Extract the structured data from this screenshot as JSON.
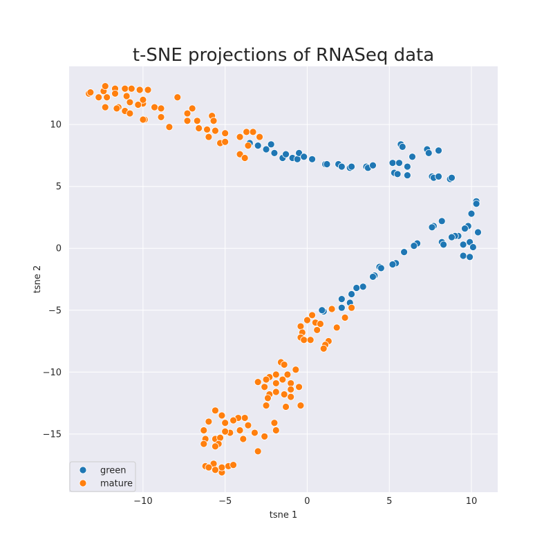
{
  "chart_data": {
    "type": "scatter",
    "title": "t-SNE projections of RNASeq data",
    "xlabel": "tsne 1",
    "ylabel": "tsne 2",
    "xlim": [
      -14.5,
      11.6
    ],
    "ylim": [
      -19.7,
      14.7
    ],
    "xticks": [
      -10,
      -5,
      0,
      5,
      10
    ],
    "yticks": [
      -15,
      -10,
      -5,
      0,
      5,
      10
    ],
    "xtick_labels": [
      "−10",
      "−5",
      "0",
      "5",
      "10"
    ],
    "ytick_labels": [
      "−15",
      "−10",
      "−5",
      "0",
      "5",
      "10"
    ],
    "grid": true,
    "legend_position": "lower-left",
    "background_color": "#eaeaf2",
    "series": [
      {
        "name": "green",
        "color": "#1f77b4",
        "points": [
          [
            -3.5,
            8.5
          ],
          [
            -3.0,
            8.3
          ],
          [
            -2.5,
            8.0
          ],
          [
            -2.2,
            8.4
          ],
          [
            -2.0,
            7.7
          ],
          [
            -1.5,
            7.3
          ],
          [
            -1.3,
            7.6
          ],
          [
            -0.9,
            7.3
          ],
          [
            -0.6,
            7.2
          ],
          [
            -0.5,
            7.7
          ],
          [
            -0.2,
            7.4
          ],
          [
            0.3,
            7.2
          ],
          [
            1.1,
            6.8
          ],
          [
            1.2,
            6.8
          ],
          [
            1.9,
            6.8
          ],
          [
            2.1,
            6.6
          ],
          [
            2.6,
            6.5
          ],
          [
            2.7,
            6.6
          ],
          [
            3.6,
            6.6
          ],
          [
            3.7,
            6.5
          ],
          [
            4.0,
            6.7
          ],
          [
            5.2,
            6.9
          ],
          [
            5.3,
            6.1
          ],
          [
            5.5,
            6.0
          ],
          [
            5.6,
            6.9
          ],
          [
            5.7,
            8.4
          ],
          [
            5.8,
            8.2
          ],
          [
            6.1,
            5.9
          ],
          [
            6.1,
            6.6
          ],
          [
            6.4,
            7.4
          ],
          [
            7.3,
            8.0
          ],
          [
            7.4,
            7.7
          ],
          [
            7.6,
            5.8
          ],
          [
            7.7,
            5.7
          ],
          [
            8.0,
            7.9
          ],
          [
            8.0,
            5.8
          ],
          [
            8.7,
            5.6
          ],
          [
            8.8,
            5.7
          ],
          [
            10.3,
            3.8
          ],
          [
            10.3,
            3.6
          ],
          [
            10.0,
            2.8
          ],
          [
            10.4,
            1.3
          ],
          [
            8.2,
            2.2
          ],
          [
            7.7,
            1.8
          ],
          [
            7.6,
            1.7
          ],
          [
            9.8,
            1.8
          ],
          [
            9.6,
            1.6
          ],
          [
            9.2,
            1.0
          ],
          [
            9.0,
            1.0
          ],
          [
            8.2,
            0.5
          ],
          [
            8.3,
            0.3
          ],
          [
            8.8,
            0.9
          ],
          [
            9.9,
            0.5
          ],
          [
            10.1,
            0.1
          ],
          [
            9.5,
            0.3
          ],
          [
            9.5,
            -0.6
          ],
          [
            9.9,
            -0.7
          ],
          [
            6.7,
            0.4
          ],
          [
            6.5,
            0.2
          ],
          [
            5.9,
            -0.3
          ],
          [
            5.4,
            -1.2
          ],
          [
            5.2,
            -1.3
          ],
          [
            4.4,
            -1.5
          ],
          [
            4.5,
            -1.6
          ],
          [
            4.1,
            -2.2
          ],
          [
            4.0,
            -2.3
          ],
          [
            3.4,
            -3.1
          ],
          [
            3.0,
            -3.2
          ],
          [
            2.7,
            -3.7
          ],
          [
            2.6,
            -4.4
          ],
          [
            2.1,
            -4.1
          ],
          [
            2.1,
            -4.8
          ],
          [
            1.0,
            -5.1
          ],
          [
            0.9,
            -5.0
          ]
        ]
      },
      {
        "name": "mature",
        "color": "#ff7f0e",
        "points": [
          [
            -13.3,
            12.5
          ],
          [
            -13.2,
            12.6
          ],
          [
            -12.7,
            12.2
          ],
          [
            -12.4,
            12.7
          ],
          [
            -12.3,
            13.1
          ],
          [
            -12.2,
            12.2
          ],
          [
            -12.3,
            11.4
          ],
          [
            -11.7,
            12.9
          ],
          [
            -11.7,
            12.5
          ],
          [
            -11.5,
            11.4
          ],
          [
            -11.6,
            11.3
          ],
          [
            -11.1,
            12.9
          ],
          [
            -11.0,
            12.3
          ],
          [
            -11.1,
            11.1
          ],
          [
            -10.8,
            10.9
          ],
          [
            -10.8,
            11.8
          ],
          [
            -10.7,
            12.9
          ],
          [
            -10.2,
            12.8
          ],
          [
            -10.0,
            11.7
          ],
          [
            -10.0,
            12.0
          ],
          [
            -10.3,
            11.6
          ],
          [
            -9.9,
            10.4
          ],
          [
            -10.0,
            10.4
          ],
          [
            -9.7,
            12.8
          ],
          [
            -9.3,
            11.4
          ],
          [
            -8.9,
            11.3
          ],
          [
            -8.9,
            10.6
          ],
          [
            -8.4,
            9.8
          ],
          [
            -7.9,
            12.2
          ],
          [
            -7.3,
            10.9
          ],
          [
            -7.0,
            11.3
          ],
          [
            -7.3,
            10.3
          ],
          [
            -6.7,
            10.3
          ],
          [
            -6.6,
            9.7
          ],
          [
            -6.1,
            9.6
          ],
          [
            -6.0,
            9.0
          ],
          [
            -5.8,
            10.7
          ],
          [
            -5.7,
            10.3
          ],
          [
            -5.6,
            9.5
          ],
          [
            -5.3,
            8.5
          ],
          [
            -5.0,
            9.3
          ],
          [
            -5.0,
            8.6
          ],
          [
            -4.1,
            9.0
          ],
          [
            -4.1,
            7.6
          ],
          [
            -3.8,
            7.3
          ],
          [
            -3.7,
            9.4
          ],
          [
            -3.6,
            8.3
          ],
          [
            -3.3,
            9.4
          ],
          [
            -2.9,
            9.0
          ],
          [
            1.5,
            -4.9
          ],
          [
            2.7,
            -4.8
          ],
          [
            2.3,
            -5.6
          ],
          [
            0.3,
            -5.4
          ],
          [
            0.0,
            -5.8
          ],
          [
            0.5,
            -6.0
          ],
          [
            0.8,
            -6.1
          ],
          [
            -0.4,
            -6.3
          ],
          [
            -0.3,
            -6.8
          ],
          [
            1.8,
            -6.4
          ],
          [
            0.6,
            -6.6
          ],
          [
            -0.4,
            -7.2
          ],
          [
            -0.2,
            -7.4
          ],
          [
            0.2,
            -7.4
          ],
          [
            1.3,
            -7.5
          ],
          [
            1.1,
            -7.8
          ],
          [
            1.0,
            -8.1
          ],
          [
            -1.6,
            -9.2
          ],
          [
            -1.4,
            -9.4
          ],
          [
            -1.2,
            -10.2
          ],
          [
            -0.7,
            -9.8
          ],
          [
            -1.9,
            -10.2
          ],
          [
            -2.3,
            -10.4
          ],
          [
            -2.5,
            -10.6
          ],
          [
            -3.0,
            -10.8
          ],
          [
            -1.5,
            -10.6
          ],
          [
            -2.6,
            -11.2
          ],
          [
            -1.9,
            -10.9
          ],
          [
            -1.0,
            -10.9
          ],
          [
            -0.5,
            -11.2
          ],
          [
            -1.0,
            -11.4
          ],
          [
            -2.3,
            -11.8
          ],
          [
            -2.4,
            -12.1
          ],
          [
            -1.9,
            -11.6
          ],
          [
            -1.4,
            -11.8
          ],
          [
            -1.0,
            -12.0
          ],
          [
            -2.5,
            -12.7
          ],
          [
            -1.3,
            -12.8
          ],
          [
            -0.4,
            -12.7
          ],
          [
            -3.8,
            -13.7
          ],
          [
            -4.2,
            -13.7
          ],
          [
            -5.2,
            -13.5
          ],
          [
            -5.6,
            -13.1
          ],
          [
            -3.6,
            -14.3
          ],
          [
            -4.5,
            -13.9
          ],
          [
            -5.0,
            -14.1
          ],
          [
            -6.0,
            -14.0
          ],
          [
            -2.0,
            -14.1
          ],
          [
            -1.9,
            -14.7
          ],
          [
            -3.2,
            -14.9
          ],
          [
            -4.1,
            -14.7
          ],
          [
            -4.7,
            -14.9
          ],
          [
            -5.0,
            -14.8
          ],
          [
            -3.9,
            -15.4
          ],
          [
            -2.6,
            -15.2
          ],
          [
            -5.6,
            -15.4
          ],
          [
            -5.3,
            -15.3
          ],
          [
            -5.4,
            -15.8
          ],
          [
            -6.2,
            -15.4
          ],
          [
            -6.3,
            -15.8
          ],
          [
            -6.3,
            -14.7
          ],
          [
            -5.6,
            -16.0
          ],
          [
            -3.0,
            -16.4
          ],
          [
            -5.7,
            -17.4
          ],
          [
            -6.2,
            -17.6
          ],
          [
            -6.0,
            -17.7
          ],
          [
            -5.6,
            -17.9
          ],
          [
            -5.2,
            -18.1
          ],
          [
            -5.2,
            -17.7
          ],
          [
            -4.8,
            -17.6
          ],
          [
            -4.5,
            -17.5
          ]
        ]
      }
    ]
  }
}
